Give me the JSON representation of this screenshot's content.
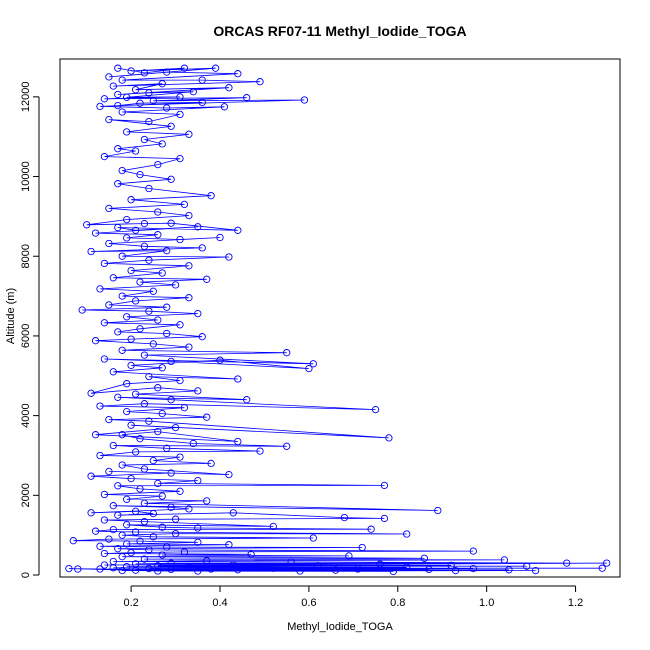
{
  "colors": {
    "series": "#0000ff",
    "axes": "#000000",
    "background": "#ffffff"
  },
  "chart_data": {
    "type": "line",
    "title": "ORCAS RF07-11 Methyl_Iodide_TOGA",
    "xlabel": "Methyl_Iodide_TOGA",
    "ylabel": "Altitude (m)",
    "xlim": [
      0.04,
      1.3
    ],
    "ylim": [
      -50,
      12950
    ],
    "xticks": [
      0.2,
      0.4,
      0.6,
      0.8,
      1.0,
      1.2
    ],
    "xtick_labels": [
      "0.2",
      "0.4",
      "0.6",
      "0.8",
      "1.0",
      "1.2"
    ],
    "yticks": [
      0,
      2000,
      4000,
      6000,
      8000,
      10000,
      12000
    ],
    "ytick_labels": [
      "0",
      "2000",
      "4000",
      "6000",
      "8000",
      "10000",
      "12000"
    ],
    "grid": false,
    "marker": "open-circle",
    "series": [
      {
        "points": [
          [
            0.17,
            12720
          ],
          [
            0.23,
            12600
          ],
          [
            0.32,
            12720
          ],
          [
            0.2,
            12650
          ],
          [
            0.39,
            12720
          ],
          [
            0.15,
            12500
          ],
          [
            0.28,
            12620
          ],
          [
            0.44,
            12580
          ],
          [
            0.18,
            12420
          ],
          [
            0.36,
            12420
          ],
          [
            0.49,
            12380
          ],
          [
            0.16,
            12270
          ],
          [
            0.27,
            12330
          ],
          [
            0.21,
            12180
          ],
          [
            0.42,
            12230
          ],
          [
            0.17,
            12060
          ],
          [
            0.24,
            12100
          ],
          [
            0.34,
            12130
          ],
          [
            0.19,
            11990
          ],
          [
            0.31,
            12000
          ],
          [
            0.14,
            11950
          ],
          [
            0.46,
            11980
          ],
          [
            0.25,
            11900
          ],
          [
            0.59,
            11920
          ],
          [
            0.17,
            11780
          ],
          [
            0.22,
            11840
          ],
          [
            0.36,
            11860
          ],
          [
            0.13,
            11760
          ],
          [
            0.28,
            11720
          ],
          [
            0.41,
            11750
          ],
          [
            0.18,
            11620
          ],
          [
            0.31,
            11560
          ],
          [
            0.24,
            11380
          ],
          [
            0.15,
            11430
          ],
          [
            0.29,
            11260
          ],
          [
            0.19,
            11120
          ],
          [
            0.33,
            11060
          ],
          [
            0.23,
            10930
          ],
          [
            0.27,
            10820
          ],
          [
            0.17,
            10700
          ],
          [
            0.21,
            10640
          ],
          [
            0.14,
            10500
          ],
          [
            0.31,
            10450
          ],
          [
            0.26,
            10300
          ],
          [
            0.18,
            10150
          ],
          [
            0.22,
            10050
          ],
          [
            0.29,
            9930
          ],
          [
            0.17,
            9820
          ],
          [
            0.24,
            9700
          ],
          [
            0.38,
            9520
          ],
          [
            0.2,
            9420
          ],
          [
            0.32,
            9300
          ],
          [
            0.15,
            9200
          ],
          [
            0.26,
            9110
          ],
          [
            0.33,
            9020
          ],
          [
            0.19,
            8920
          ],
          [
            0.1,
            8790
          ],
          [
            0.23,
            8820
          ],
          [
            0.29,
            8830
          ],
          [
            0.44,
            8650
          ],
          [
            0.17,
            8720
          ],
          [
            0.21,
            8650
          ],
          [
            0.35,
            8740
          ],
          [
            0.12,
            8580
          ],
          [
            0.26,
            8540
          ],
          [
            0.19,
            8460
          ],
          [
            0.31,
            8420
          ],
          [
            0.4,
            8470
          ],
          [
            0.15,
            8320
          ],
          [
            0.23,
            8250
          ],
          [
            0.36,
            8210
          ],
          [
            0.11,
            8120
          ],
          [
            0.28,
            8140
          ],
          [
            0.18,
            8000
          ],
          [
            0.42,
            7980
          ],
          [
            0.24,
            7900
          ],
          [
            0.14,
            7820
          ],
          [
            0.33,
            7760
          ],
          [
            0.2,
            7640
          ],
          [
            0.27,
            7580
          ],
          [
            0.16,
            7460
          ],
          [
            0.37,
            7420
          ],
          [
            0.22,
            7350
          ],
          [
            0.3,
            7280
          ],
          [
            0.13,
            7180
          ],
          [
            0.25,
            7120
          ],
          [
            0.18,
            7000
          ],
          [
            0.33,
            6960
          ],
          [
            0.21,
            6880
          ],
          [
            0.15,
            6780
          ],
          [
            0.28,
            6720
          ],
          [
            0.09,
            6650
          ],
          [
            0.24,
            6620
          ],
          [
            0.35,
            6560
          ],
          [
            0.19,
            6480
          ],
          [
            0.26,
            6400
          ],
          [
            0.14,
            6330
          ],
          [
            0.31,
            6280
          ],
          [
            0.22,
            6180
          ],
          [
            0.17,
            6100
          ],
          [
            0.28,
            6060
          ],
          [
            0.36,
            5980
          ],
          [
            0.2,
            5920
          ],
          [
            0.12,
            5880
          ],
          [
            0.25,
            5800
          ],
          [
            0.33,
            5720
          ],
          [
            0.18,
            5640
          ],
          [
            0.55,
            5580
          ],
          [
            0.23,
            5520
          ],
          [
            0.61,
            5300
          ],
          [
            0.14,
            5420
          ],
          [
            0.29,
            5360
          ],
          [
            0.6,
            5180
          ],
          [
            0.4,
            5390
          ],
          [
            0.2,
            5260
          ],
          [
            0.27,
            5200
          ],
          [
            0.16,
            5100
          ],
          [
            0.44,
            4920
          ],
          [
            0.24,
            4980
          ],
          [
            0.31,
            4880
          ],
          [
            0.19,
            4800
          ],
          [
            0.11,
            4560
          ],
          [
            0.26,
            4700
          ],
          [
            0.35,
            4620
          ],
          [
            0.21,
            4540
          ],
          [
            0.46,
            4400
          ],
          [
            0.17,
            4460
          ],
          [
            0.29,
            4400
          ],
          [
            0.75,
            4150
          ],
          [
            0.23,
            4300
          ],
          [
            0.13,
            4240
          ],
          [
            0.32,
            4200
          ],
          [
            0.19,
            4100
          ],
          [
            0.27,
            4050
          ],
          [
            0.37,
            3960
          ],
          [
            0.15,
            3900
          ],
          [
            0.24,
            3860
          ],
          [
            0.78,
            3440
          ],
          [
            0.2,
            3760
          ],
          [
            0.3,
            3700
          ],
          [
            0.12,
            3520
          ],
          [
            0.44,
            3350
          ],
          [
            0.26,
            3600
          ],
          [
            0.18,
            3520
          ],
          [
            0.22,
            3420
          ],
          [
            0.34,
            3300
          ],
          [
            0.55,
            3230
          ],
          [
            0.16,
            3250
          ],
          [
            0.28,
            3180
          ],
          [
            0.49,
            3110
          ],
          [
            0.21,
            3090
          ],
          [
            0.13,
            3000
          ],
          [
            0.31,
            2960
          ],
          [
            0.25,
            2870
          ],
          [
            0.38,
            2800
          ],
          [
            0.18,
            2760
          ],
          [
            0.23,
            2660
          ],
          [
            0.42,
            2520
          ],
          [
            0.15,
            2600
          ],
          [
            0.29,
            2560
          ],
          [
            0.11,
            2480
          ],
          [
            0.2,
            2420
          ],
          [
            0.35,
            2370
          ],
          [
            0.26,
            2300
          ],
          [
            0.77,
            2250
          ],
          [
            0.17,
            2240
          ],
          [
            0.22,
            2160
          ],
          [
            0.31,
            2100
          ],
          [
            0.14,
            2020
          ],
          [
            0.27,
            1980
          ],
          [
            0.19,
            1900
          ],
          [
            0.37,
            1860
          ],
          [
            0.23,
            1800
          ],
          [
            0.89,
            1620
          ],
          [
            0.16,
            1740
          ],
          [
            0.29,
            1700
          ],
          [
            0.33,
            1660
          ],
          [
            0.11,
            1560
          ],
          [
            0.21,
            1600
          ],
          [
            0.25,
            1540
          ],
          [
            0.17,
            1500
          ],
          [
            0.43,
            1560
          ],
          [
            0.68,
            1440
          ],
          [
            0.77,
            1420
          ],
          [
            0.3,
            1400
          ],
          [
            0.14,
            1380
          ],
          [
            0.23,
            1340
          ],
          [
            0.52,
            1220
          ],
          [
            0.19,
            1260
          ],
          [
            0.27,
            1200
          ],
          [
            0.35,
            1180
          ],
          [
            0.74,
            1150
          ],
          [
            0.16,
            1140
          ],
          [
            0.12,
            1100
          ],
          [
            0.21,
            1080
          ],
          [
            0.82,
            1030
          ],
          [
            0.3,
            1040
          ],
          [
            0.18,
            1000
          ],
          [
            0.25,
            960
          ],
          [
            0.61,
            930
          ],
          [
            0.15,
            900
          ],
          [
            0.07,
            860
          ],
          [
            0.22,
            850
          ],
          [
            0.35,
            820
          ],
          [
            0.19,
            780
          ],
          [
            0.42,
            760
          ],
          [
            0.13,
            720
          ],
          [
            0.28,
            700
          ],
          [
            0.72,
            690
          ],
          [
            0.17,
            660
          ],
          [
            0.24,
            630
          ],
          [
            0.97,
            600
          ],
          [
            0.32,
            580
          ],
          [
            0.2,
            560
          ],
          [
            0.14,
            540
          ],
          [
            0.47,
            520
          ],
          [
            0.27,
            500
          ],
          [
            0.69,
            480
          ],
          [
            0.18,
            460
          ],
          [
            0.86,
            420
          ],
          [
            0.23,
            400
          ],
          [
            1.04,
            380
          ],
          [
            0.37,
            360
          ],
          [
            0.16,
            340
          ],
          [
            0.56,
            330
          ],
          [
            1.18,
            300
          ],
          [
            0.29,
            300
          ],
          [
            0.21,
            280
          ],
          [
            1.27,
            300
          ],
          [
            0.76,
            270
          ],
          [
            0.14,
            250
          ],
          [
            0.43,
            250
          ],
          [
            0.92,
            240
          ],
          [
            0.26,
            230
          ],
          [
            1.09,
            220
          ],
          [
            0.62,
            220
          ],
          [
            0.19,
            210
          ],
          [
            0.33,
            200
          ],
          [
            0.82,
            190
          ],
          [
            0.16,
            180
          ],
          [
            1.26,
            170
          ],
          [
            0.52,
            170
          ],
          [
            0.24,
            160
          ],
          [
            0.97,
            160
          ],
          [
            0.38,
            150
          ],
          [
            0.71,
            150
          ],
          [
            0.13,
            150
          ],
          [
            0.87,
            140
          ],
          [
            0.29,
            140
          ],
          [
            1.05,
            130
          ],
          [
            0.44,
            130
          ],
          [
            0.21,
            120
          ],
          [
            0.66,
            120
          ],
          [
            0.08,
            150
          ],
          [
            0.93,
            110
          ],
          [
            0.18,
            110
          ],
          [
            0.35,
            100
          ],
          [
            1.11,
            110
          ],
          [
            0.58,
            100
          ],
          [
            0.06,
            160
          ],
          [
            0.26,
            100
          ],
          [
            0.79,
            90
          ]
        ]
      }
    ]
  }
}
